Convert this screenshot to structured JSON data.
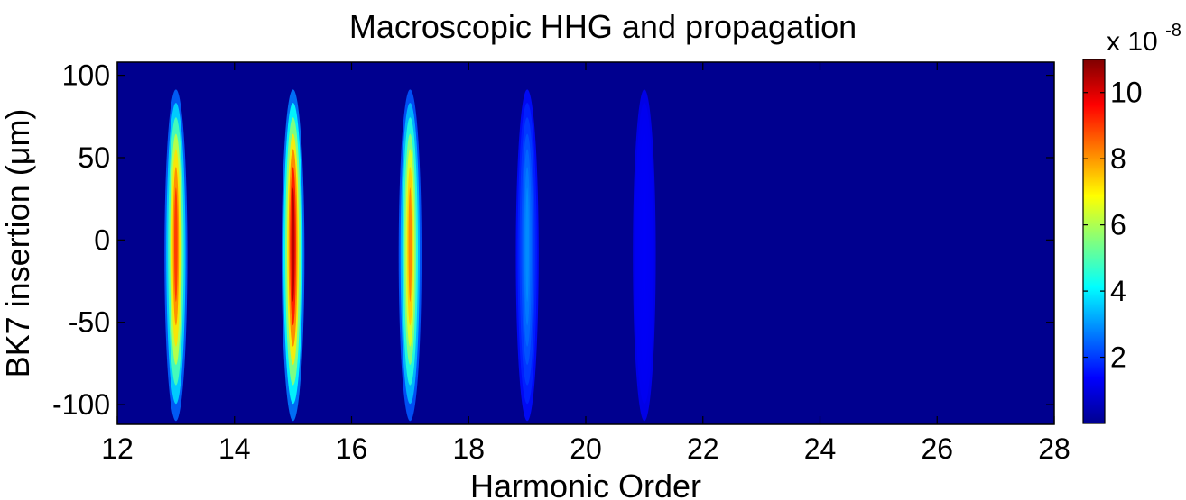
{
  "chart_data": {
    "type": "heatmap",
    "title": "Macroscopic HHG and propagation",
    "xlabel": "Harmonic Order",
    "ylabel": "BK7 insertion (μm)",
    "xlim": [
      12,
      28
    ],
    "ylim": [
      -112,
      108
    ],
    "xticks": [
      "12",
      "14",
      "16",
      "18",
      "20",
      "22",
      "24",
      "26",
      "28"
    ],
    "yticks": [
      "100",
      "50",
      "0",
      "-50",
      "-100"
    ],
    "colorbar": {
      "label_prefix": "x 10",
      "label_exponent": "-8",
      "range": [
        0,
        11
      ],
      "ticks": [
        "2",
        "4",
        "6",
        "8",
        "10"
      ],
      "colormap": "jet"
    },
    "harmonic_peaks": [
      {
        "order": 13,
        "peak_value": 9.5,
        "y_range": [
          -110,
          105
        ]
      },
      {
        "order": 15,
        "peak_value": 11.0,
        "y_range": [
          -110,
          105
        ]
      },
      {
        "order": 17,
        "peak_value": 8.6,
        "y_range": [
          -110,
          105
        ]
      },
      {
        "order": 19,
        "peak_value": 3.0,
        "y_range": [
          -110,
          105
        ]
      },
      {
        "order": 21,
        "peak_value": 1.3,
        "y_range": [
          -110,
          105
        ]
      }
    ],
    "background_color": "#00008f"
  }
}
